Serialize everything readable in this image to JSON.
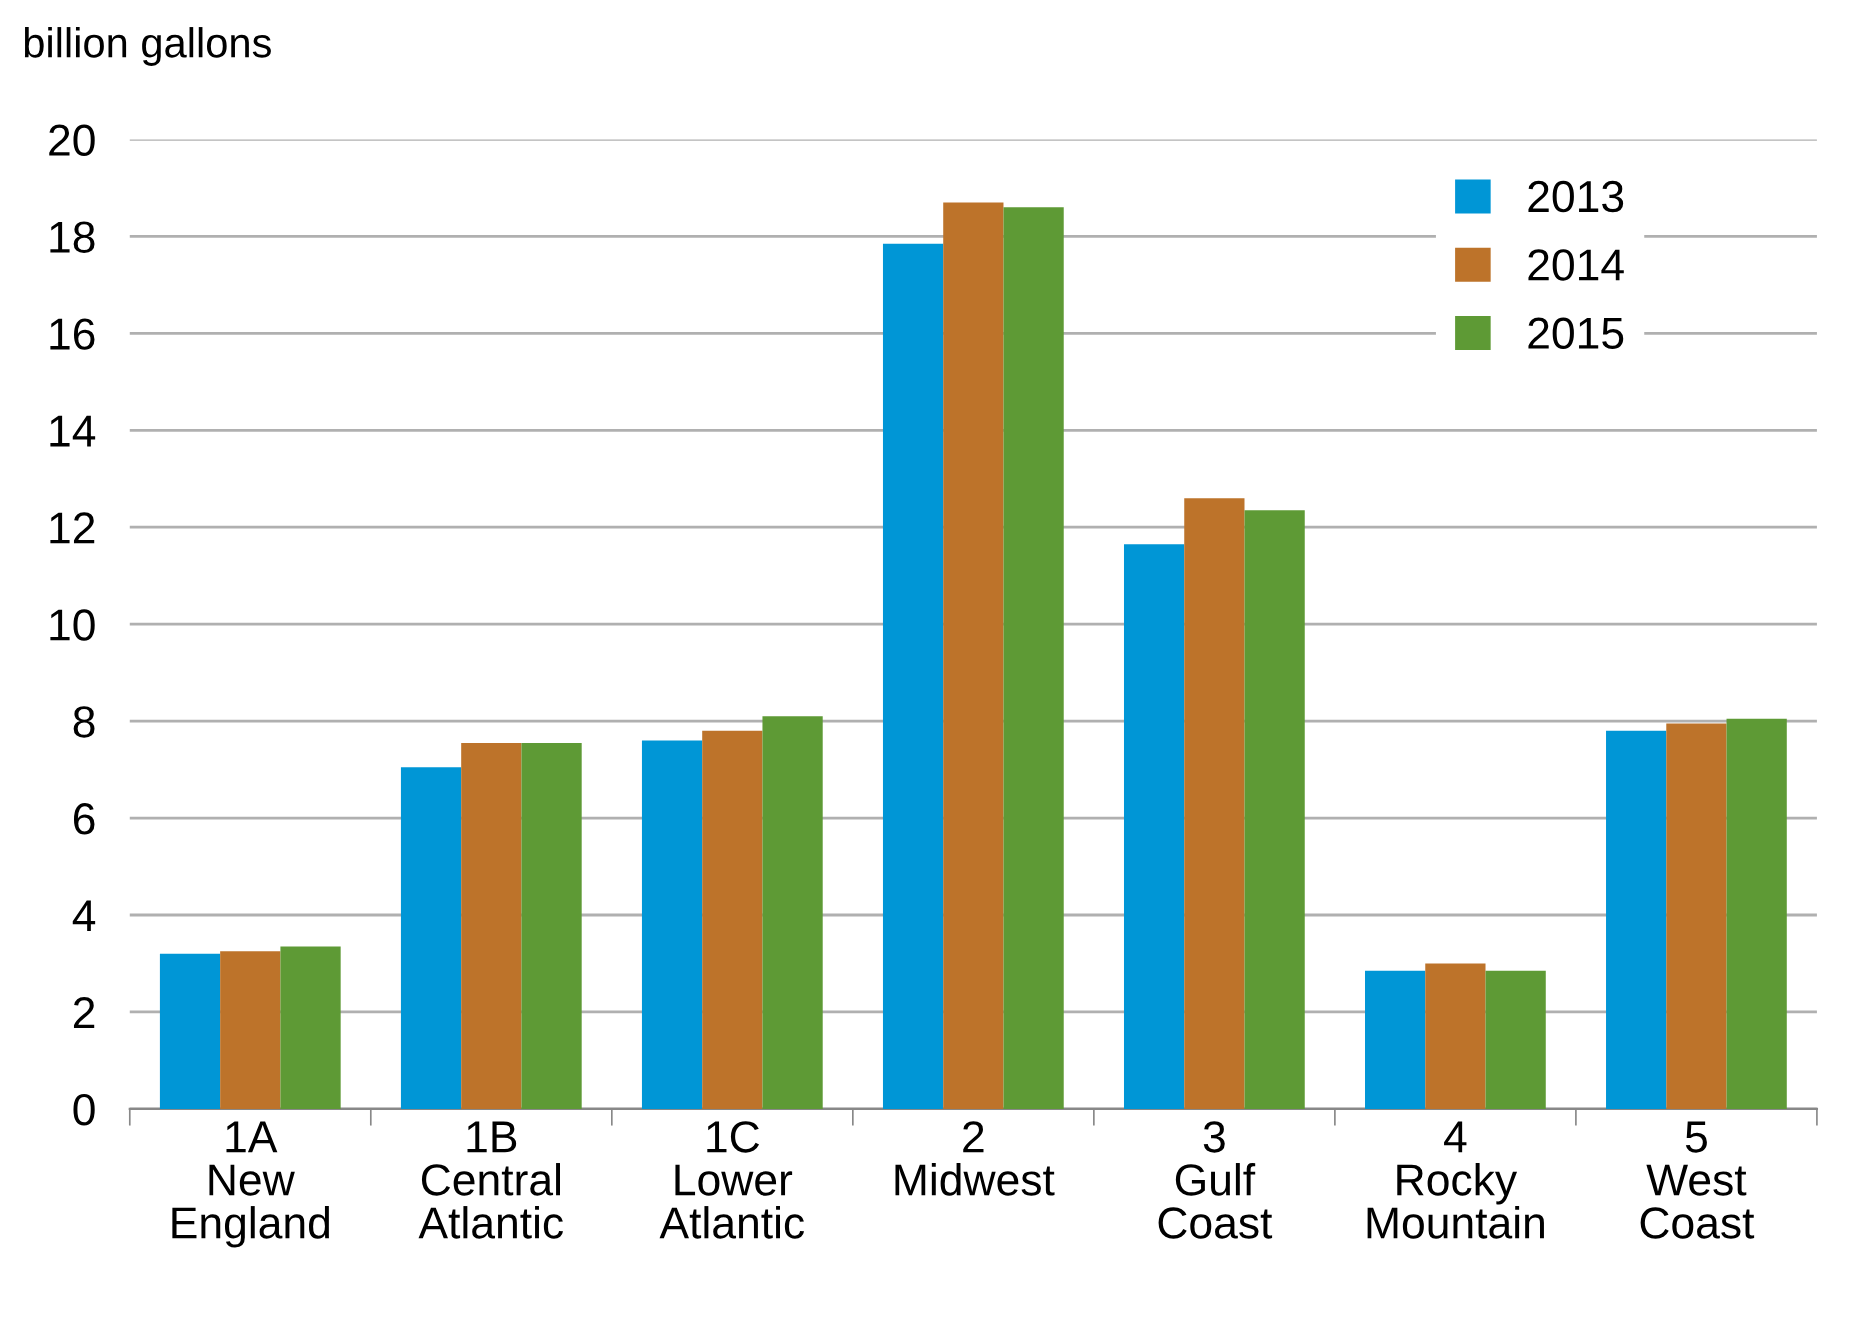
{
  "chart_data": {
    "type": "bar",
    "ylabel": "billion gallons",
    "categories": [
      "1A\nNew\nEngland",
      "1B\nCentral\nAtlantic",
      "1C\nLower\nAtlantic",
      "2\nMidwest",
      "3\nGulf\nCoast",
      "4\nRocky\nMountain",
      "5\nWest\nCoast"
    ],
    "series": [
      {
        "name": "2013",
        "color": "#0096d6",
        "values": [
          3.2,
          7.05,
          7.6,
          17.85,
          11.65,
          2.85,
          7.8
        ]
      },
      {
        "name": "2014",
        "color": "#bd732a",
        "values": [
          3.25,
          7.55,
          7.8,
          18.7,
          12.6,
          3.0,
          7.95
        ]
      },
      {
        "name": "2015",
        "color": "#5e9a35",
        "values": [
          3.35,
          7.55,
          8.1,
          18.6,
          12.35,
          2.85,
          8.05
        ]
      }
    ],
    "ylim": [
      0,
      20
    ],
    "yticks": [
      0,
      2,
      4,
      6,
      8,
      10,
      12,
      14,
      16,
      18,
      20
    ],
    "grid": "y",
    "legend": "top right"
  }
}
